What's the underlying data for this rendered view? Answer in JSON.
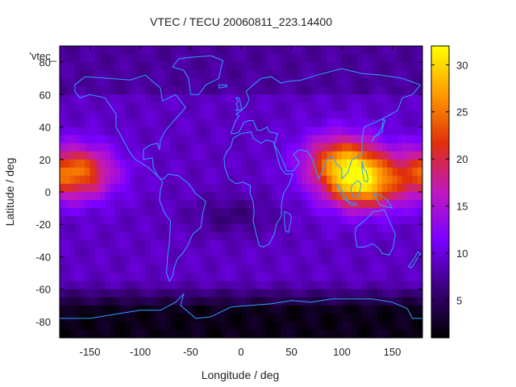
{
  "chart_data": {
    "type": "heatmap",
    "title": "VTEC / TECU 20060811_223.14400",
    "xlabel": "Longitude / deg",
    "ylabel": "Latitude / deg",
    "xlim": [
      -180,
      180
    ],
    "ylim": [
      -90,
      90
    ],
    "x_ticks": [
      -150,
      -100,
      -50,
      0,
      50,
      100,
      150
    ],
    "y_ticks": [
      -80,
      -60,
      -40,
      -20,
      0,
      20,
      40,
      60,
      80
    ],
    "series_label": "'vtec_",
    "colorbar": {
      "range": [
        1,
        32
      ],
      "ticks": [
        5,
        10,
        15,
        20,
        25,
        30
      ],
      "palette": [
        "#000000",
        "#3a007a",
        "#7a00ff",
        "#c018c0",
        "#e0300a",
        "#ff9a00",
        "#ffff00"
      ]
    },
    "vtec_features": {
      "background_level": 9,
      "anomaly_peaks": [
        {
          "lon": -165,
          "lat": 12,
          "value": 25
        },
        {
          "lon": 120,
          "lat": 5,
          "value": 28
        },
        {
          "lon": 100,
          "lat": 20,
          "value": 23
        }
      ],
      "polar_minimum": {
        "lat": -75,
        "value": 2
      }
    },
    "grid": false,
    "legend": "top-left"
  }
}
